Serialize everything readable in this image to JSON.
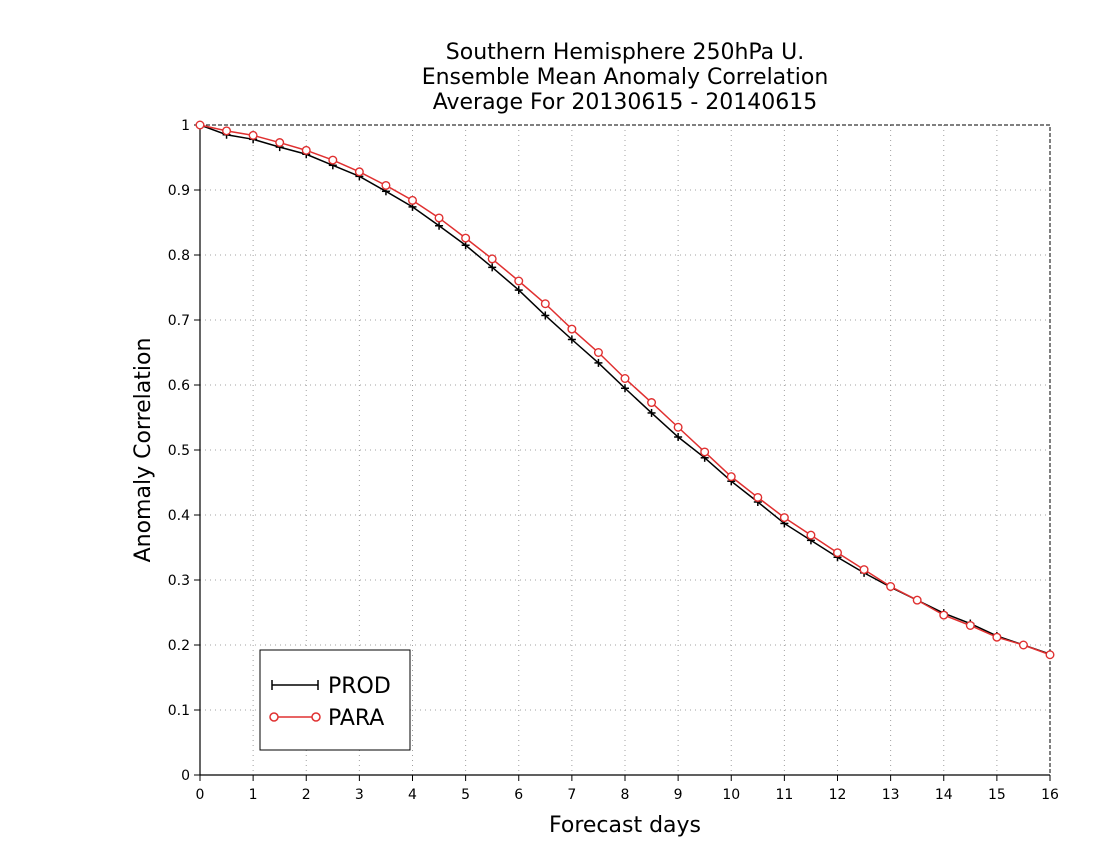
{
  "chart_data": {
    "type": "line",
    "title": [
      "Southern Hemisphere 250hPa U.",
      "Ensemble Mean Anomaly Correlation",
      "Average For 20130615 - 20140615"
    ],
    "xlabel": "Forecast days",
    "ylabel": "Anomaly Correlation",
    "xlim": [
      0,
      16
    ],
    "ylim": [
      0,
      1
    ],
    "x_ticks": [
      "0",
      "1",
      "2",
      "3",
      "4",
      "5",
      "6",
      "7",
      "8",
      "9",
      "10",
      "11",
      "12",
      "13",
      "14",
      "15",
      "16"
    ],
    "y_ticks": [
      "0",
      "0.1",
      "0.2",
      "0.3",
      "0.4",
      "0.5",
      "0.6",
      "0.7",
      "0.8",
      "0.9",
      "1"
    ],
    "grid": true,
    "legend_position": "bottom-left",
    "x": [
      0,
      0.5,
      1,
      1.5,
      2,
      2.5,
      3,
      3.5,
      4,
      4.5,
      5,
      5.5,
      6,
      6.5,
      7,
      7.5,
      8,
      8.5,
      9,
      9.5,
      10,
      10.5,
      11,
      11.5,
      12,
      12.5,
      13,
      13.5,
      14,
      14.5,
      15,
      15.5,
      16
    ],
    "series": [
      {
        "name": "PROD",
        "color": "#000000",
        "marker": "plus",
        "values": [
          1.0,
          0.985,
          0.978,
          0.966,
          0.955,
          0.938,
          0.921,
          0.898,
          0.874,
          0.845,
          0.815,
          0.781,
          0.746,
          0.707,
          0.67,
          0.634,
          0.595,
          0.557,
          0.52,
          0.488,
          0.452,
          0.42,
          0.387,
          0.361,
          0.335,
          0.311,
          0.289,
          0.269,
          0.249,
          0.233,
          0.214,
          0.2,
          0.186
        ]
      },
      {
        "name": "PARA",
        "color": "#e03030",
        "marker": "circle",
        "values": [
          1.0,
          0.991,
          0.984,
          0.973,
          0.961,
          0.946,
          0.928,
          0.907,
          0.884,
          0.857,
          0.826,
          0.794,
          0.76,
          0.725,
          0.686,
          0.65,
          0.61,
          0.573,
          0.535,
          0.497,
          0.459,
          0.427,
          0.396,
          0.369,
          0.342,
          0.316,
          0.29,
          0.269,
          0.246,
          0.23,
          0.212,
          0.2,
          0.185
        ]
      }
    ]
  }
}
